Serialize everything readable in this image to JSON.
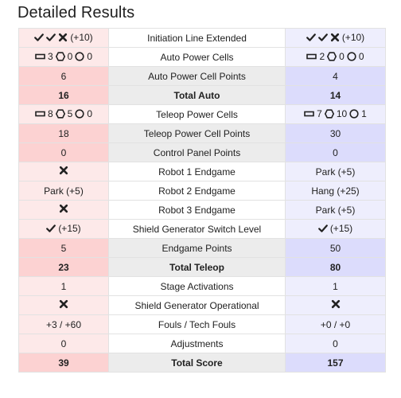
{
  "title": "Detailed Results",
  "rows": [
    {
      "style": "light",
      "label": "Initiation Line Extended",
      "red": {
        "icons": [
          "check",
          "check",
          "cross"
        ],
        "text": "(+10)"
      },
      "blue": {
        "icons": [
          "check",
          "check",
          "cross"
        ],
        "text": "(+10)"
      }
    },
    {
      "style": "light",
      "label": "Auto Power Cells",
      "red": {
        "cells": [
          {
            "shape": "rect",
            "n": "3"
          },
          {
            "shape": "hex",
            "n": "0"
          },
          {
            "shape": "circle",
            "n": "0"
          }
        ]
      },
      "blue": {
        "cells": [
          {
            "shape": "rect",
            "n": "2"
          },
          {
            "shape": "hex",
            "n": "0"
          },
          {
            "shape": "circle",
            "n": "0"
          }
        ]
      }
    },
    {
      "style": "strong",
      "label": "Auto Power Cell Points",
      "red": {
        "text": "6"
      },
      "blue": {
        "text": "4"
      }
    },
    {
      "style": "strong",
      "bold": true,
      "label": "Total Auto",
      "red": {
        "text": "16"
      },
      "blue": {
        "text": "14"
      }
    },
    {
      "style": "light",
      "label": "Teleop Power Cells",
      "red": {
        "cells": [
          {
            "shape": "rect",
            "n": "8"
          },
          {
            "shape": "hex",
            "n": "5"
          },
          {
            "shape": "circle",
            "n": "0"
          }
        ]
      },
      "blue": {
        "cells": [
          {
            "shape": "rect",
            "n": "7"
          },
          {
            "shape": "hex",
            "n": "10"
          },
          {
            "shape": "circle",
            "n": "1"
          }
        ]
      }
    },
    {
      "style": "strong",
      "label": "Teleop Power Cell Points",
      "red": {
        "text": "18"
      },
      "blue": {
        "text": "30"
      }
    },
    {
      "style": "strong",
      "label": "Control Panel Points",
      "red": {
        "text": "0"
      },
      "blue": {
        "text": "0"
      }
    },
    {
      "style": "light",
      "label": "Robot 1 Endgame",
      "red": {
        "icons": [
          "cross"
        ]
      },
      "blue": {
        "text": "Park (+5)"
      }
    },
    {
      "style": "light",
      "label": "Robot 2 Endgame",
      "red": {
        "text": "Park (+5)"
      },
      "blue": {
        "text": "Hang (+25)"
      }
    },
    {
      "style": "light",
      "label": "Robot 3 Endgame",
      "red": {
        "icons": [
          "cross"
        ]
      },
      "blue": {
        "text": "Park (+5)"
      }
    },
    {
      "style": "light",
      "label": "Shield Generator Switch Level",
      "red": {
        "icons": [
          "check"
        ],
        "text": "(+15)"
      },
      "blue": {
        "icons": [
          "check"
        ],
        "text": "(+15)"
      }
    },
    {
      "style": "strong",
      "label": "Endgame Points",
      "red": {
        "text": "5"
      },
      "blue": {
        "text": "50"
      }
    },
    {
      "style": "strong",
      "bold": true,
      "label": "Total Teleop",
      "red": {
        "text": "23"
      },
      "blue": {
        "text": "80"
      }
    },
    {
      "style": "light",
      "label": "Stage Activations",
      "red": {
        "text": "1"
      },
      "blue": {
        "text": "1"
      }
    },
    {
      "style": "light",
      "label": "Shield Generator Operational",
      "red": {
        "icons": [
          "cross"
        ]
      },
      "blue": {
        "icons": [
          "cross"
        ]
      }
    },
    {
      "style": "light",
      "label": "Fouls / Tech Fouls",
      "red": {
        "text": "+3 / +60"
      },
      "blue": {
        "text": "+0 / +0"
      }
    },
    {
      "style": "light",
      "label": "Adjustments",
      "red": {
        "text": "0"
      },
      "blue": {
        "text": "0"
      }
    },
    {
      "style": "strong",
      "bold": true,
      "label": "Total Score",
      "red": {
        "text": "39"
      },
      "blue": {
        "text": "157"
      }
    }
  ]
}
